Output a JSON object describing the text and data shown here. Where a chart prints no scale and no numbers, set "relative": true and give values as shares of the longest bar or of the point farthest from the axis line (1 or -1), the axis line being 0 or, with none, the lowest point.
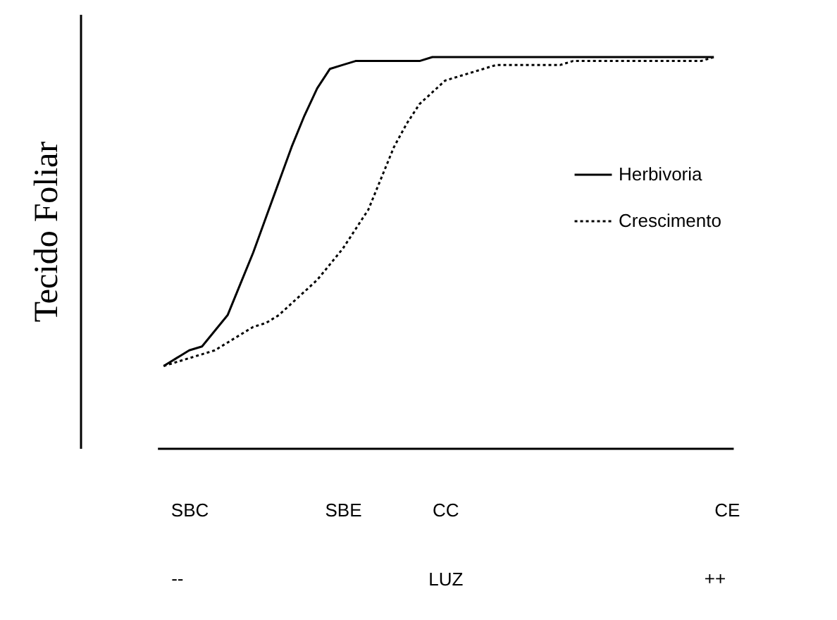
{
  "chart_data": {
    "type": "line",
    "relative": true,
    "ylabel": "Tecido Foliar",
    "xlabel": "LUZ",
    "categories": [
      null,
      null,
      "SBC",
      null,
      null,
      null,
      null,
      null,
      null,
      null,
      null,
      null,
      null,
      null,
      "SBE",
      null,
      null,
      null,
      null,
      null,
      null,
      null,
      "CC",
      null,
      null,
      null,
      null,
      null,
      null,
      null,
      null,
      null,
      null,
      null,
      null,
      null,
      null,
      null,
      null,
      null,
      null,
      null,
      null,
      null,
      "CE"
    ],
    "series": [
      {
        "name": "Herbivoria",
        "color": "#000000",
        "line_style": "solid",
        "values": [
          0.21,
          0.23,
          0.25,
          0.26,
          0.3,
          0.34,
          0.42,
          0.5,
          0.59,
          0.68,
          0.77,
          0.85,
          0.92,
          0.97,
          0.98,
          0.99,
          0.99,
          0.99,
          0.99,
          0.99,
          0.99,
          1.0,
          1.0,
          1.0,
          1.0,
          1.0,
          1.0,
          1.0,
          1.0,
          1.0,
          1.0,
          1.0,
          1.0,
          1.0,
          1.0,
          1.0,
          1.0,
          1.0,
          1.0,
          1.0,
          1.0,
          1.0,
          1.0,
          1.0,
          null
        ]
      },
      {
        "name": "Crescimento",
        "color": "#000000",
        "line_style": "dotted",
        "values": [
          0.21,
          0.22,
          0.23,
          0.24,
          0.25,
          0.27,
          0.29,
          0.31,
          0.32,
          0.34,
          0.37,
          0.4,
          0.43,
          0.47,
          0.51,
          0.56,
          0.61,
          0.69,
          0.77,
          0.83,
          0.88,
          0.91,
          0.94,
          0.95,
          0.96,
          0.97,
          0.98,
          0.98,
          0.98,
          0.98,
          0.98,
          0.98,
          0.99,
          0.99,
          0.99,
          0.99,
          0.99,
          0.99,
          0.99,
          0.99,
          0.99,
          0.99,
          0.99,
          1.0,
          null
        ]
      }
    ],
    "legend": "right",
    "annotations": [
      "--",
      "++"
    ]
  }
}
